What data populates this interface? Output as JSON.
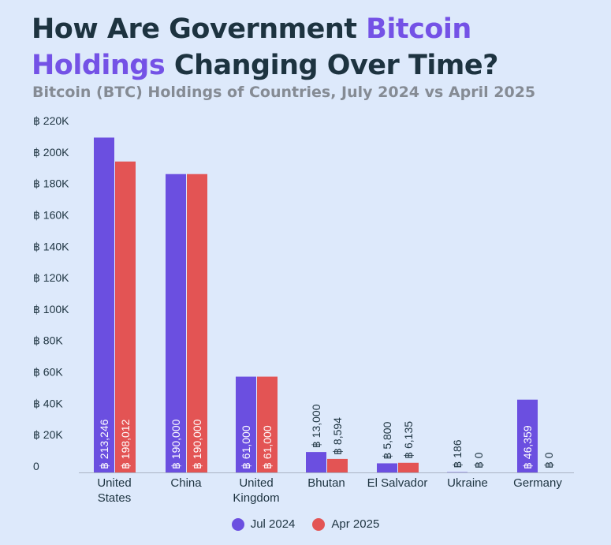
{
  "header": {
    "title_part1": "How Are Government ",
    "title_part2": "Bitcoin",
    "title_part3": "Holdings",
    "title_part4": " Changing Over Time?",
    "subtitle": "Bitcoin (BTC) Holdings of Countries, July 2024 vs April 2025"
  },
  "colors": {
    "background": "#dde9fb",
    "title": "#1d3340",
    "accent": "#7452e6",
    "subtitle": "#858b94",
    "series_jul": "#6b4fe0",
    "series_apr": "#e35454"
  },
  "chart_data": {
    "type": "bar",
    "title": "How Are Government Bitcoin Holdings Changing Over Time?",
    "subtitle": "Bitcoin (BTC) Holdings of Countries, July 2024 vs April 2025",
    "categories": [
      [
        "United",
        "States"
      ],
      [
        "China"
      ],
      [
        "United",
        "Kingdom"
      ],
      [
        "Bhutan"
      ],
      [
        "El Salvador"
      ],
      [
        "Ukraine"
      ],
      [
        "Germany"
      ]
    ],
    "series": [
      {
        "name": "Jul 2024",
        "color": "#6b4fe0",
        "values": [
          213246,
          190000,
          61000,
          13000,
          5800,
          186,
          46359
        ],
        "labels": [
          "฿ 213,246",
          "฿ 190,000",
          "฿ 61,000",
          "฿ 13,000",
          "฿ 5,800",
          "฿ 186",
          "฿ 46,359"
        ]
      },
      {
        "name": "Apr 2025",
        "color": "#e35454",
        "values": [
          198012,
          190000,
          61000,
          8594,
          6135,
          0,
          0
        ],
        "labels": [
          "฿ 198,012",
          "฿ 190,000",
          "฿ 61,000",
          "฿ 8,594",
          "฿ 6,135",
          "฿ 0",
          "฿ 0"
        ]
      }
    ],
    "ylim": [
      0,
      220000
    ],
    "yticks": [
      {
        "value": 0,
        "label": "0"
      },
      {
        "value": 20000,
        "label": "฿ 20K"
      },
      {
        "value": 40000,
        "label": "฿ 40K"
      },
      {
        "value": 60000,
        "label": "฿ 60K"
      },
      {
        "value": 80000,
        "label": "฿ 80K"
      },
      {
        "value": 100000,
        "label": "฿ 100K"
      },
      {
        "value": 120000,
        "label": "฿ 120K"
      },
      {
        "value": 140000,
        "label": "฿ 140K"
      },
      {
        "value": 160000,
        "label": "฿ 160K"
      },
      {
        "value": 180000,
        "label": "฿ 180K"
      },
      {
        "value": 200000,
        "label": "฿ 200K"
      },
      {
        "value": 220000,
        "label": "฿ 220K"
      }
    ],
    "grid": false,
    "legend_position": "bottom-center"
  }
}
